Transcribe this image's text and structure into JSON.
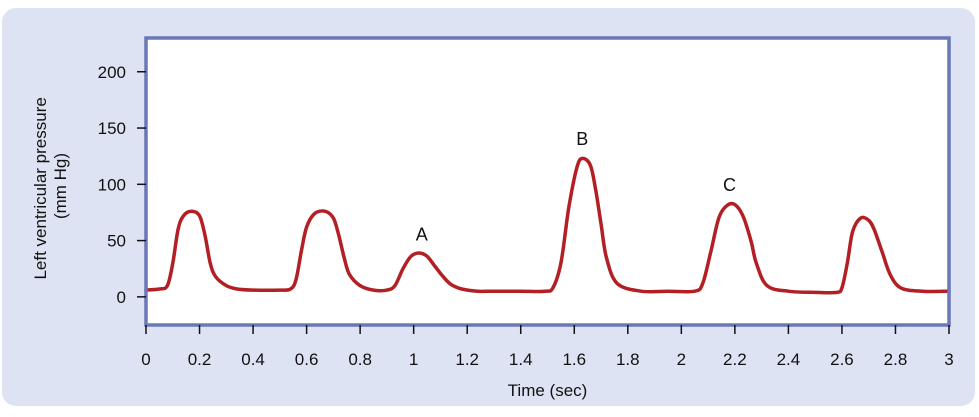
{
  "chart_data": {
    "type": "line",
    "title": "",
    "xlabel": "Time (sec)",
    "ylabel_lines": [
      "Left ventricular pressure",
      "(mm Hg)"
    ],
    "xlim": [
      0,
      3
    ],
    "ylim": [
      -25,
      230
    ],
    "x_ticks": [
      0,
      0.2,
      0.4,
      0.6,
      0.8,
      1,
      1.2,
      1.4,
      1.6,
      1.8,
      2,
      2.2,
      2.4,
      2.6,
      2.8,
      3
    ],
    "x_tick_labels": [
      "0",
      "0.2",
      "0.4",
      "0.6",
      "0.8",
      "1",
      "1.2",
      "1.4",
      "1.6",
      "1.8",
      "2",
      "2.2",
      "2.4",
      "2.6",
      "2.8",
      "3"
    ],
    "y_ticks": [
      0,
      50,
      100,
      150,
      200
    ],
    "y_tick_labels": [
      "0",
      "50",
      "100",
      "150",
      "200"
    ],
    "grid": false,
    "colors": {
      "line": "#b21f24",
      "frame": "#6a78b8",
      "plot_bg": "#ffffff",
      "panel_bg": "#dde3f2"
    },
    "series": [
      {
        "x": [
          0,
          0.05,
          0.08,
          0.1,
          0.12,
          0.14,
          0.17,
          0.2,
          0.22,
          0.24,
          0.26,
          0.3,
          0.34,
          0.4,
          0.5,
          0.54,
          0.56,
          0.58,
          0.6,
          0.63,
          0.67,
          0.7,
          0.72,
          0.74,
          0.76,
          0.8,
          0.85,
          0.9,
          0.93,
          0.96,
          0.99,
          1.02,
          1.05,
          1.08,
          1.11,
          1.14,
          1.18,
          1.24,
          1.3,
          1.4,
          1.49,
          1.52,
          1.55,
          1.58,
          1.61,
          1.63,
          1.66,
          1.68,
          1.7,
          1.72,
          1.76,
          1.85,
          1.95,
          2.05,
          2.08,
          2.11,
          2.14,
          2.17,
          2.2,
          2.23,
          2.26,
          2.28,
          2.32,
          2.4,
          2.5,
          2.58,
          2.6,
          2.62,
          2.64,
          2.67,
          2.7,
          2.72,
          2.75,
          2.78,
          2.82,
          2.9,
          3
        ],
        "y": [
          6,
          7,
          10,
          30,
          60,
          72,
          76,
          72,
          55,
          30,
          18,
          10,
          7,
          6,
          6,
          7,
          15,
          40,
          62,
          74,
          76,
          70,
          55,
          35,
          20,
          10,
          6,
          6,
          10,
          25,
          36,
          39,
          36,
          27,
          18,
          11,
          7,
          5,
          5,
          5,
          5,
          8,
          30,
          80,
          115,
          123,
          117,
          95,
          65,
          35,
          12,
          5,
          5,
          5,
          12,
          40,
          70,
          81,
          82,
          72,
          50,
          30,
          10,
          5,
          4,
          4,
          8,
          30,
          58,
          70,
          68,
          60,
          40,
          20,
          8,
          5,
          5
        ]
      }
    ],
    "annotations": [
      {
        "text": "A",
        "x": 1.03,
        "y": 50
      },
      {
        "text": "B",
        "x": 1.63,
        "y": 135
      },
      {
        "text": "C",
        "x": 2.18,
        "y": 94
      }
    ]
  }
}
